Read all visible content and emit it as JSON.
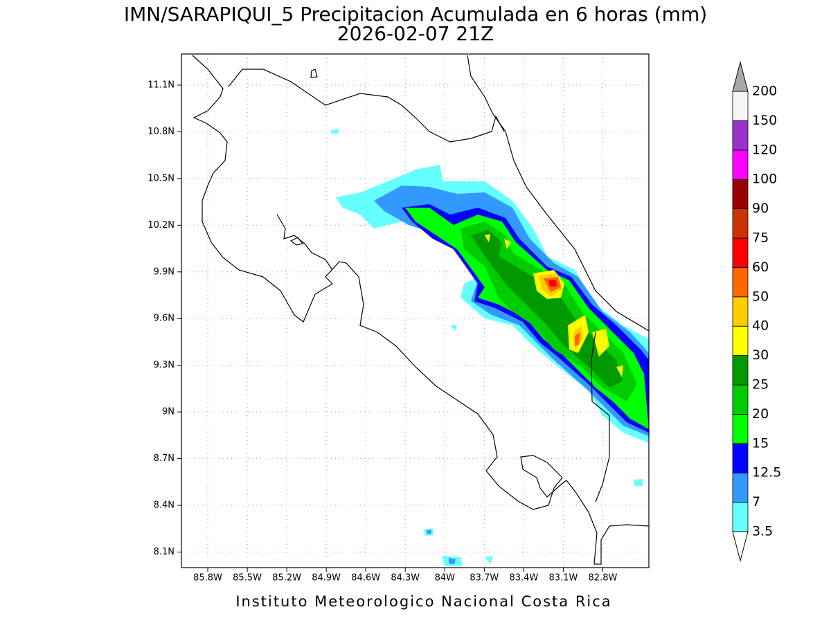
{
  "title": "IMN/SARAPIQUI_5 Precipitacion Acumulada en 6 horas (mm)",
  "subtitle": "2026-02-07 21Z",
  "footer": "Instituto Meteorologico Nacional Costa Rica",
  "map": {
    "xlim": [
      -86.0,
      -82.45
    ],
    "ylim": [
      8.0,
      11.3
    ],
    "grid": true,
    "xticks": [
      {
        "value": -85.8,
        "label": "85.8W"
      },
      {
        "value": -85.5,
        "label": "85.5W"
      },
      {
        "value": -85.2,
        "label": "85.2W"
      },
      {
        "value": -84.9,
        "label": "84.9W"
      },
      {
        "value": -84.6,
        "label": "84.6W"
      },
      {
        "value": -84.3,
        "label": "84.3W"
      },
      {
        "value": -84.0,
        "label": "84W"
      },
      {
        "value": -83.7,
        "label": "83.7W"
      },
      {
        "value": -83.4,
        "label": "83.4W"
      },
      {
        "value": -83.1,
        "label": "83.1W"
      },
      {
        "value": -82.8,
        "label": "82.8W"
      }
    ],
    "yticks": [
      {
        "value": 8.1,
        "label": "8.1N"
      },
      {
        "value": 8.4,
        "label": "8.4N"
      },
      {
        "value": 8.7,
        "label": "8.7N"
      },
      {
        "value": 9.0,
        "label": "9N"
      },
      {
        "value": 9.3,
        "label": "9.3N"
      },
      {
        "value": 9.6,
        "label": "9.6N"
      },
      {
        "value": 9.9,
        "label": "9.9N"
      },
      {
        "value": 10.2,
        "label": "10.2N"
      },
      {
        "value": 10.5,
        "label": "10.5N"
      },
      {
        "value": 10.8,
        "label": "10.8N"
      },
      {
        "value": 11.1,
        "label": "11.1N"
      }
    ]
  },
  "colorbar": {
    "levels": [
      3.5,
      7,
      12.5,
      15,
      20,
      25,
      30,
      40,
      50,
      60,
      75,
      90,
      100,
      120,
      150,
      200
    ],
    "colors": [
      "#66ffff",
      "#3399ff",
      "#0000ff",
      "#00ff00",
      "#00cc00",
      "#009900",
      "#ffff00",
      "#ffcc00",
      "#ff6600",
      "#ff0000",
      "#cc3300",
      "#990000",
      "#ff00ff",
      "#9933cc",
      "#f5f5f5"
    ],
    "under_color": "#ffffff",
    "over_color": "#a9a9a9"
  }
}
